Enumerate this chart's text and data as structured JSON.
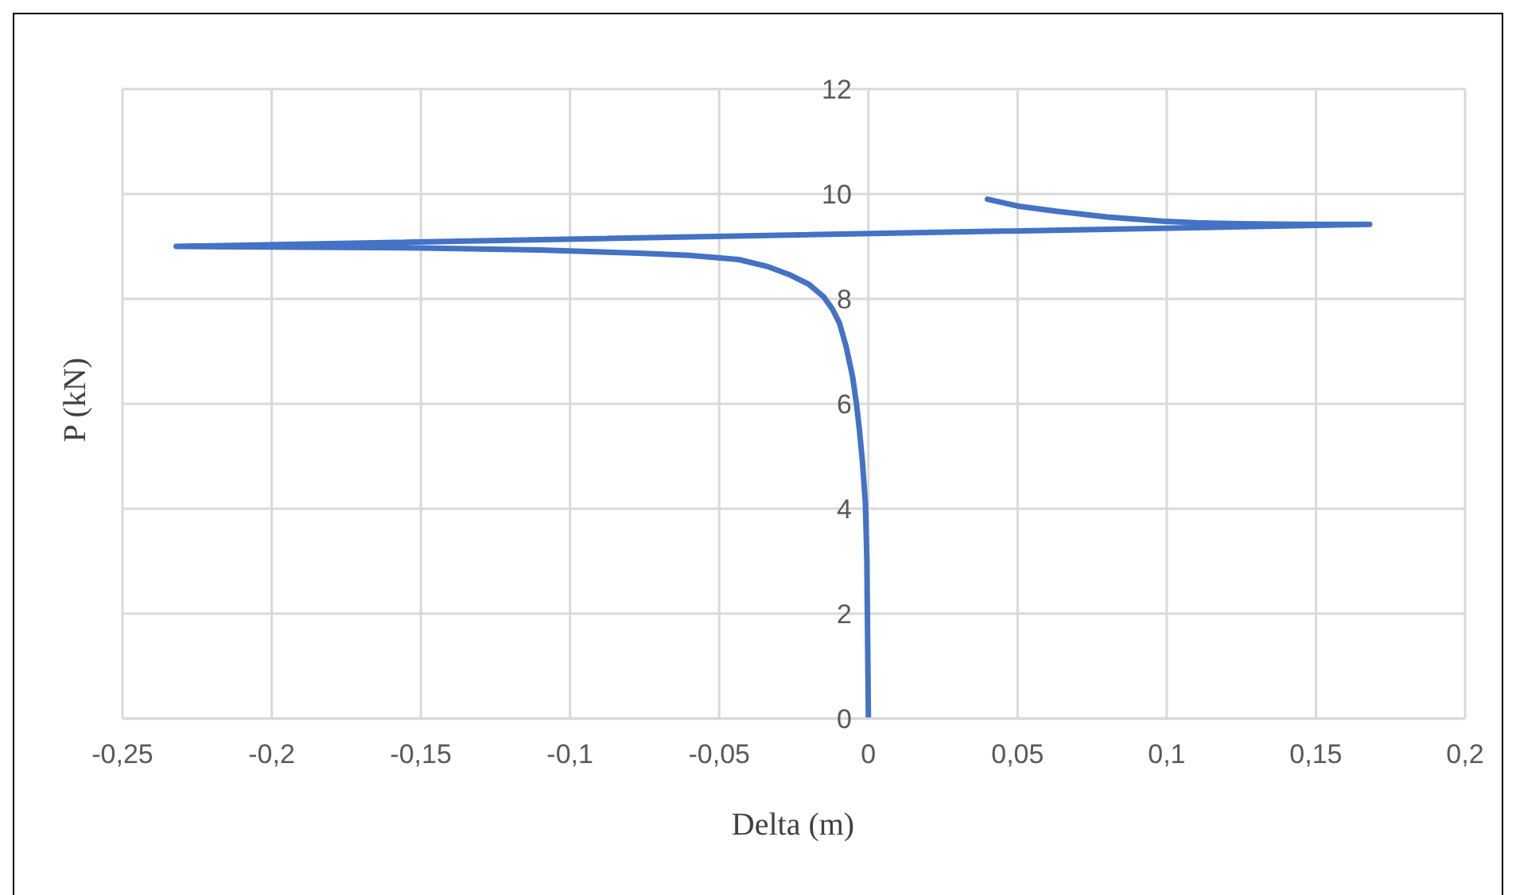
{
  "chart_data": {
    "type": "line",
    "xlabel": "Delta (m)",
    "ylabel": "P (kN)",
    "x": [
      0,
      -0.0005,
      -0.001,
      -0.002,
      -0.003,
      -0.004,
      -0.0053,
      -0.0075,
      -0.0097,
      -0.012,
      -0.015,
      -0.02,
      -0.026,
      -0.034,
      -0.0435,
      -0.06,
      -0.077,
      -0.11,
      -0.15,
      -0.232,
      0.168,
      0.145,
      0.125,
      0.11,
      0.0985,
      0.08,
      0.063,
      0.05,
      0.0399
    ],
    "series": [
      {
        "color": "#4472c4",
        "values": [
          0,
          3.0,
          4.1,
          4.9,
          5.5,
          6.0,
          6.52,
          7.1,
          7.54,
          7.8,
          8.04,
          8.28,
          8.45,
          8.62,
          8.75,
          8.83,
          8.87,
          8.93,
          8.97,
          9.0,
          9.42,
          9.42,
          9.43,
          9.45,
          9.48,
          9.56,
          9.67,
          9.77,
          9.9
        ]
      }
    ],
    "xlim": [
      -0.25,
      0.2
    ],
    "xticks": [
      {
        "value": -0.25,
        "label": "-0,25"
      },
      {
        "value": -0.2,
        "label": "-0,2"
      },
      {
        "value": -0.15,
        "label": "-0,15"
      },
      {
        "value": -0.1,
        "label": "-0,1"
      },
      {
        "value": -0.05,
        "label": "-0,05"
      },
      0,
      {
        "value": 0.05,
        "label": "0,05"
      },
      {
        "value": 0.1,
        "label": "0,1"
      },
      {
        "value": 0.15,
        "label": "0,15"
      },
      {
        "value": 0.2,
        "label": "0,2"
      }
    ],
    "ylim": [
      0,
      12
    ],
    "yticks": [
      0,
      2,
      4,
      6,
      8,
      10,
      12
    ],
    "grid": true,
    "legend": false,
    "marker": "none",
    "line_style": "solid"
  }
}
